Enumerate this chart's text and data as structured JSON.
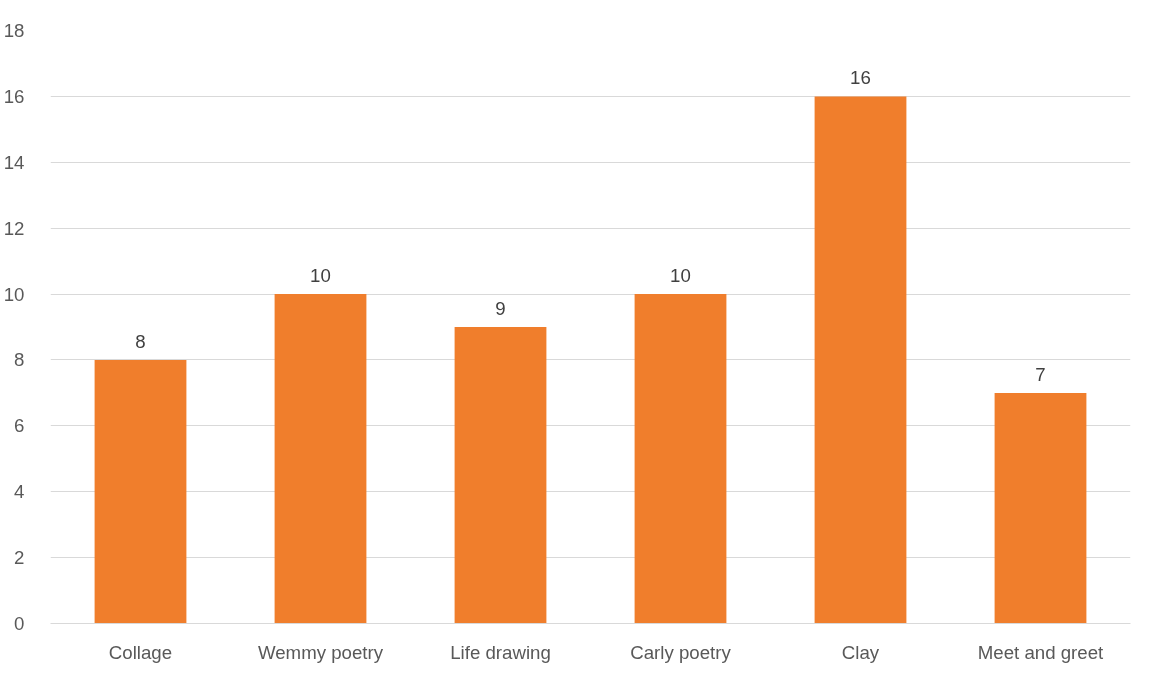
{
  "chart_data": {
    "type": "bar",
    "categories": [
      "Collage",
      "Wemmy poetry",
      "Life drawing",
      "Carly poetry",
      "Clay",
      "Meet and greet"
    ],
    "values": [
      8,
      10,
      9,
      10,
      16,
      7
    ],
    "color": "#f07e2c",
    "ylim": [
      0,
      18
    ],
    "yticks": [
      0,
      2,
      4,
      6,
      8,
      10,
      12,
      14,
      16,
      18
    ],
    "grid": "y",
    "data_labels": true
  }
}
